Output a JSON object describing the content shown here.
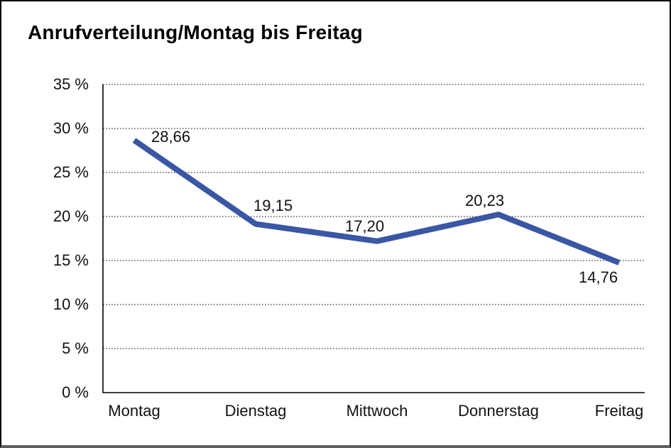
{
  "window": {
    "background": "#ffffff",
    "border_color": "#000000"
  },
  "chart_data": {
    "type": "line",
    "title": "Anrufverteilung/Montag bis Freitag",
    "categories": [
      "Montag",
      "Dienstag",
      "Mittwoch",
      "Donnerstag",
      "Freitag"
    ],
    "values": [
      28.66,
      19.15,
      17.2,
      20.23,
      14.76
    ],
    "point_labels": [
      "28,66",
      "19,15",
      "17,20",
      "20,23",
      "14,76"
    ],
    "ytick_labels": [
      "35 %",
      "30 %",
      "25 %",
      "20 %",
      "15 %",
      "10 %",
      "5 %",
      "0 %"
    ],
    "xlabel": "",
    "ylabel": "",
    "ylim": [
      0,
      35
    ],
    "ytick_step": 5,
    "grid": "horizontal-dotted",
    "legend": "none",
    "line_color": "#3A57A5",
    "axis_color": "#000000"
  }
}
